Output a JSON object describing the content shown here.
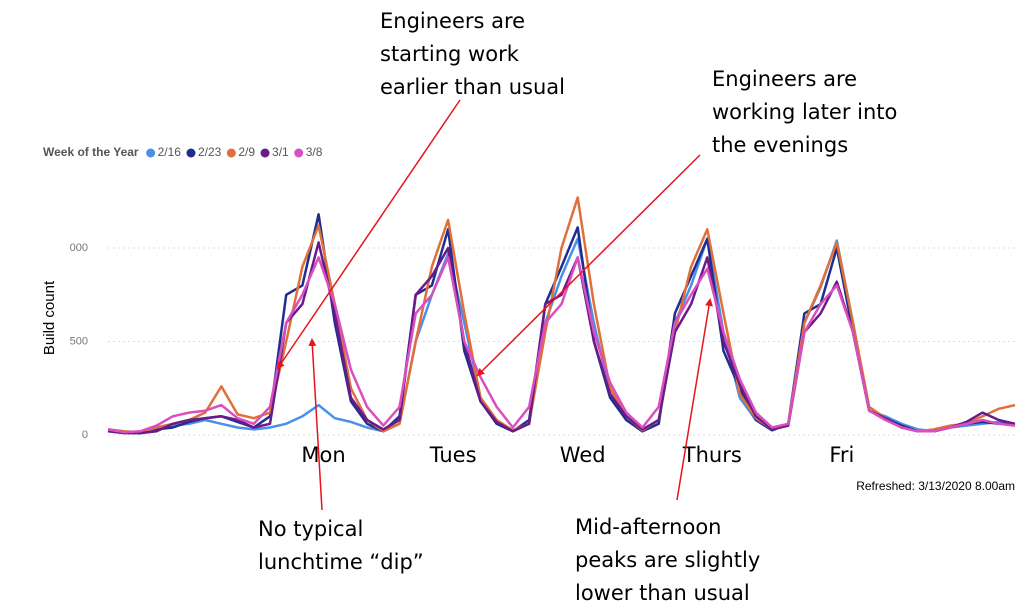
{
  "chart_data": {
    "type": "line",
    "ylabel": "Build count",
    "legend_title": "Week of the Year",
    "note": "Refreshed: 3/13/2020 8.00am",
    "ylim": [
      0,
      1300
    ],
    "yticks": [
      0,
      500,
      {
        "value": 1000,
        "label": "000"
      }
    ],
    "grid": true,
    "categories": [
      null,
      null,
      null,
      null,
      null,
      null,
      null,
      null,
      null,
      null,
      null,
      null,
      null,
      "Mon",
      null,
      null,
      null,
      null,
      null,
      null,
      null,
      "Tues",
      null,
      null,
      null,
      null,
      null,
      null,
      null,
      "Wed",
      null,
      null,
      null,
      null,
      null,
      null,
      null,
      "Thurs",
      null,
      null,
      null,
      null,
      null,
      null,
      null,
      "Fri",
      null,
      null,
      null,
      null,
      null,
      null,
      null,
      null,
      null,
      null,
      null
    ],
    "series": [
      {
        "name": "2/16",
        "color": "#4a90e8",
        "values": [
          30,
          15,
          10,
          30,
          50,
          60,
          80,
          60,
          40,
          30,
          40,
          60,
          100,
          160,
          90,
          70,
          40,
          20,
          60,
          500,
          750,
          970,
          600,
          200,
          60,
          20,
          60,
          600,
          850,
          1050,
          600,
          220,
          80,
          20,
          60,
          600,
          800,
          1050,
          550,
          200,
          80,
          25,
          60,
          600,
          790,
          1040,
          600,
          130,
          100,
          60,
          30,
          20,
          40,
          50,
          60,
          70,
          50
        ]
      },
      {
        "name": "2/23",
        "color": "#1f2e8e",
        "values": [
          25,
          15,
          10,
          30,
          40,
          70,
          90,
          100,
          70,
          40,
          100,
          750,
          800,
          1180,
          600,
          180,
          60,
          20,
          100,
          750,
          800,
          1100,
          450,
          180,
          60,
          20,
          80,
          700,
          900,
          1110,
          500,
          200,
          80,
          20,
          60,
          650,
          850,
          1050,
          450,
          250,
          80,
          25,
          60,
          650,
          700,
          1000,
          550,
          130,
          90,
          50,
          20,
          20,
          40,
          60,
          70,
          60,
          60
        ]
      },
      {
        "name": "2/9",
        "color": "#e0703a",
        "values": [
          30,
          20,
          15,
          40,
          60,
          80,
          120,
          260,
          110,
          90,
          120,
          500,
          900,
          1120,
          700,
          250,
          80,
          20,
          60,
          500,
          900,
          1150,
          650,
          200,
          80,
          25,
          60,
          550,
          1000,
          1270,
          700,
          250,
          100,
          25,
          80,
          550,
          900,
          1100,
          650,
          220,
          90,
          30,
          60,
          600,
          800,
          1030,
          600,
          150,
          90,
          40,
          20,
          30,
          50,
          60,
          100,
          140,
          160
        ]
      },
      {
        "name": "3/1",
        "color": "#6a1a8a",
        "values": [
          20,
          10,
          10,
          20,
          60,
          80,
          90,
          100,
          80,
          40,
          60,
          600,
          700,
          1030,
          650,
          200,
          80,
          30,
          80,
          750,
          850,
          1000,
          500,
          180,
          70,
          20,
          60,
          700,
          750,
          950,
          500,
          220,
          100,
          30,
          80,
          550,
          700,
          950,
          500,
          270,
          100,
          30,
          50,
          550,
          650,
          820,
          550,
          130,
          90,
          40,
          20,
          20,
          40,
          70,
          120,
          80,
          60
        ]
      },
      {
        "name": "3/8",
        "color": "#d94fbf",
        "values": [
          30,
          15,
          20,
          50,
          100,
          120,
          130,
          160,
          90,
          60,
          150,
          600,
          750,
          950,
          700,
          350,
          150,
          50,
          150,
          650,
          750,
          950,
          500,
          310,
          150,
          40,
          150,
          600,
          700,
          950,
          550,
          280,
          120,
          40,
          150,
          600,
          750,
          890,
          550,
          300,
          120,
          40,
          60,
          550,
          700,
          800,
          550,
          130,
          80,
          40,
          20,
          20,
          40,
          60,
          80,
          60,
          50
        ]
      }
    ]
  },
  "annotations": [
    {
      "lines": [
        "Engineers are",
        "starting work",
        "earlier than usual"
      ]
    },
    {
      "lines": [
        "Engineers are",
        "working later into",
        "the evenings"
      ]
    },
    {
      "lines": [
        "No typical",
        "lunchtime “dip”"
      ]
    },
    {
      "lines": [
        "Mid-afternoon",
        "peaks are slightly",
        "lower than usual"
      ]
    }
  ]
}
